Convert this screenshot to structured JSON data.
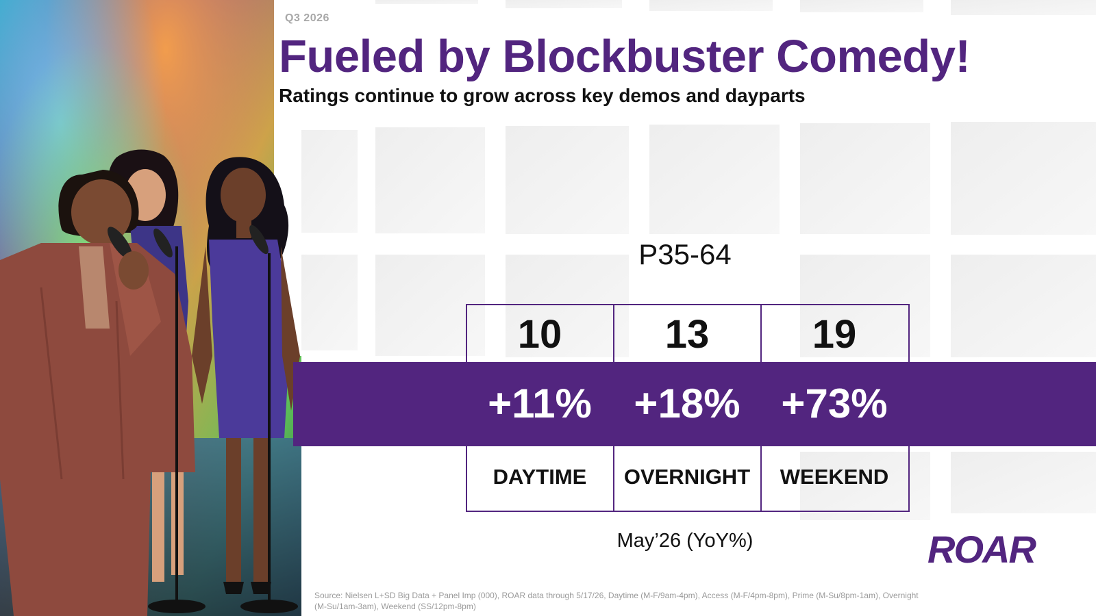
{
  "header": {
    "quarter": "Q3 2026",
    "title": "Fueled by Blockbuster Comedy!",
    "subtitle": "Ratings continue to grow across key demos and dayparts"
  },
  "demo_label": "P35-64",
  "dayparts": [
    {
      "value": "10",
      "change": "+11%",
      "label": "DAYTIME"
    },
    {
      "value": "13",
      "change": "+18%",
      "label": "OVERNIGHT"
    },
    {
      "value": "19",
      "change": "+73%",
      "label": "WEEKEND"
    }
  ],
  "date_note": "May’26 (YoY%)",
  "logo_text": "ROAR",
  "source": "Source: Nielsen L+SD Big Data + Panel Imp (000), ROAR data through 5/17/26, Daytime (M-F/9am-4pm), Access (M-F/4pm-8pm), Prime (M-Su/8pm-1am), Overnight (M-Su/1am-3am), Weekend (SS/12pm-8pm)",
  "colors": {
    "brand_purple": "#52257f",
    "text": "#111111",
    "muted": "#9a9a9a"
  }
}
